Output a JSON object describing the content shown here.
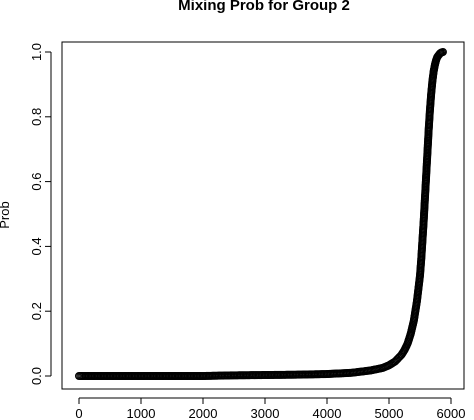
{
  "chart_data": {
    "type": "scatter",
    "title": "Mixing Prob for Group 2",
    "xlabel": "",
    "ylabel": "Prob",
    "xlim": [
      0,
      6000
    ],
    "ylim": [
      0.0,
      1.0
    ],
    "x_ticks": [
      0,
      1000,
      2000,
      3000,
      4000,
      5000,
      6000
    ],
    "x_tick_labels": [
      "0",
      "1000",
      "2000",
      "3000",
      "4000",
      "5000",
      "6000"
    ],
    "y_ticks": [
      0.0,
      0.2,
      0.4,
      0.6,
      0.8,
      1.0
    ],
    "y_tick_labels": [
      "0.0",
      "0.2",
      "0.4",
      "0.6",
      "0.8",
      "1.0"
    ],
    "grid": false,
    "marker": "open-circle",
    "marker_color": "#000000",
    "series": [
      {
        "x": [
          0,
          500,
          1000,
          1500,
          2000,
          2500,
          3000,
          3500,
          4000,
          4400,
          4700,
          4900,
          5000,
          5100,
          5200,
          5250,
          5300,
          5350,
          5400,
          5450,
          5500,
          5520,
          5540,
          5560,
          5580,
          5600,
          5620,
          5640,
          5660,
          5680,
          5700,
          5720,
          5740,
          5760,
          5780,
          5800,
          5820,
          5840,
          5870
        ],
        "y": [
          0.0,
          0.0,
          0.0,
          0.0,
          0.0,
          0.002,
          0.003,
          0.004,
          0.006,
          0.01,
          0.017,
          0.025,
          0.033,
          0.045,
          0.065,
          0.08,
          0.1,
          0.13,
          0.17,
          0.23,
          0.31,
          0.36,
          0.42,
          0.48,
          0.55,
          0.62,
          0.69,
          0.76,
          0.82,
          0.87,
          0.91,
          0.94,
          0.96,
          0.975,
          0.985,
          0.99,
          0.995,
          0.998,
          1.0
        ]
      }
    ]
  }
}
